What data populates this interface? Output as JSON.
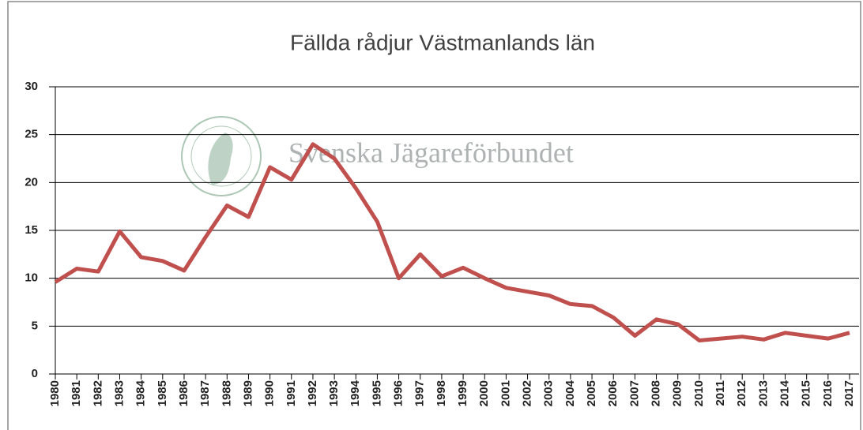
{
  "chart_data": {
    "type": "line",
    "title": "Fällda rådjur Västmanlands län",
    "watermark": "Svenska Jägareförbundet",
    "categories": [
      "1980",
      "1981",
      "1982",
      "1983",
      "1984",
      "1985",
      "1986",
      "1987",
      "1988",
      "1989",
      "1990",
      "1991",
      "1992",
      "1993",
      "1994",
      "1995",
      "1996",
      "1997",
      "1998",
      "1999",
      "2000",
      "2001",
      "2002",
      "2003",
      "2004",
      "2005",
      "2006",
      "2007",
      "2008",
      "2009",
      "2010",
      "2011",
      "2012",
      "2013",
      "2014",
      "2015",
      "2016",
      "2017"
    ],
    "series": [
      {
        "name": "Fällda rådjur",
        "color": "#c0504d",
        "values": [
          9.6,
          11.0,
          10.7,
          14.9,
          12.2,
          11.8,
          10.8,
          14.3,
          17.6,
          16.4,
          21.6,
          20.3,
          24.0,
          22.5,
          19.4,
          15.9,
          10.0,
          12.5,
          10.2,
          11.1,
          10.0,
          9.0,
          8.6,
          8.2,
          7.3,
          7.1,
          5.9,
          4.0,
          5.7,
          5.2,
          3.5,
          3.7,
          3.9,
          3.6,
          4.3,
          4.0,
          3.7,
          4.3
        ]
      }
    ],
    "ylim": [
      0,
      30
    ],
    "yticks": [
      0,
      5,
      10,
      15,
      20,
      25,
      30
    ],
    "grid": true
  }
}
